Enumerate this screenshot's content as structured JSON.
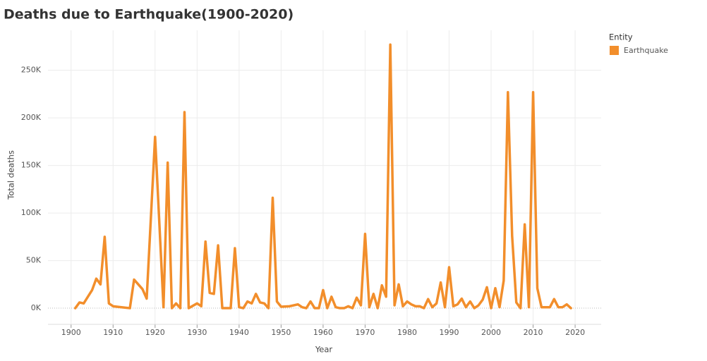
{
  "chart_data": {
    "type": "line",
    "title": "Deaths due to Earthquake(1900-2020)",
    "x_label": "Year",
    "y_label": "Total deaths",
    "legend_title": "Entity",
    "legend": "right",
    "grid": true,
    "x": [
      1901,
      1902,
      1903,
      1905,
      1906,
      1907,
      1908,
      1909,
      1910,
      1912,
      1914,
      1915,
      1917,
      1918,
      1920,
      1922,
      1923,
      1924,
      1925,
      1926,
      1927,
      1928,
      1930,
      1931,
      1932,
      1933,
      1934,
      1935,
      1936,
      1937,
      1938,
      1939,
      1940,
      1941,
      1942,
      1943,
      1944,
      1945,
      1946,
      1947,
      1948,
      1949,
      1950,
      1952,
      1954,
      1955,
      1956,
      1957,
      1958,
      1959,
      1960,
      1961,
      1962,
      1963,
      1964,
      1965,
      1966,
      1967,
      1968,
      1969,
      1970,
      1971,
      1972,
      1973,
      1974,
      1975,
      1976,
      1977,
      1978,
      1979,
      1980,
      1981,
      1982,
      1983,
      1984,
      1985,
      1986,
      1987,
      1988,
      1989,
      1990,
      1991,
      1992,
      1993,
      1994,
      1995,
      1996,
      1997,
      1998,
      1999,
      2000,
      2001,
      2002,
      2003,
      2004,
      2005,
      2006,
      2007,
      2008,
      2009,
      2010,
      2011,
      2012,
      2013,
      2014,
      2015,
      2016,
      2017,
      2018,
      2019
    ],
    "series": [
      {
        "name": "Earthquake",
        "color": "#f28e2b",
        "values": [
          0,
          6000,
          5000,
          19000,
          31000,
          25000,
          75000,
          5000,
          2000,
          1000,
          0,
          30000,
          20000,
          10000,
          180000,
          1000,
          153000,
          0,
          5000,
          0,
          206000,
          0,
          5000,
          2000,
          70000,
          16000,
          15000,
          66000,
          0,
          0,
          0,
          63000,
          1000,
          0,
          7000,
          5000,
          15000,
          6000,
          5000,
          0,
          116000,
          7000,
          1500,
          2000,
          4000,
          1000,
          0,
          7000,
          0,
          0,
          19000,
          0,
          12000,
          1000,
          0,
          0,
          2000,
          0,
          11000,
          3000,
          78000,
          1000,
          15000,
          0,
          24000,
          12000,
          277000,
          3000,
          25000,
          2000,
          7000,
          4000,
          2000,
          2000,
          0,
          9500,
          1000,
          5000,
          27000,
          1000,
          43000,
          2000,
          4000,
          10000,
          1000,
          7000,
          0,
          3000,
          9000,
          22000,
          0,
          21000,
          1000,
          29000,
          227000,
          76000,
          6000,
          0,
          88000,
          1000,
          227000,
          21000,
          1000,
          1000,
          1000,
          9500,
          1000,
          1000,
          4000,
          0
        ]
      }
    ],
    "xlim": [
      1894.5,
      2026.2
    ],
    "xticks": [
      1900,
      1910,
      1920,
      1930,
      1940,
      1950,
      1960,
      1970,
      1980,
      1990,
      2000,
      2010,
      2020
    ],
    "ylim": [
      -17000,
      292000
    ],
    "yticks": [
      {
        "value": 0,
        "label": "0K"
      },
      {
        "value": 50000,
        "label": "50K"
      },
      {
        "value": 100000,
        "label": "100K"
      },
      {
        "value": 150000,
        "label": "150K"
      },
      {
        "value": 200000,
        "label": "200K"
      },
      {
        "value": 250000,
        "label": "250K"
      }
    ]
  }
}
